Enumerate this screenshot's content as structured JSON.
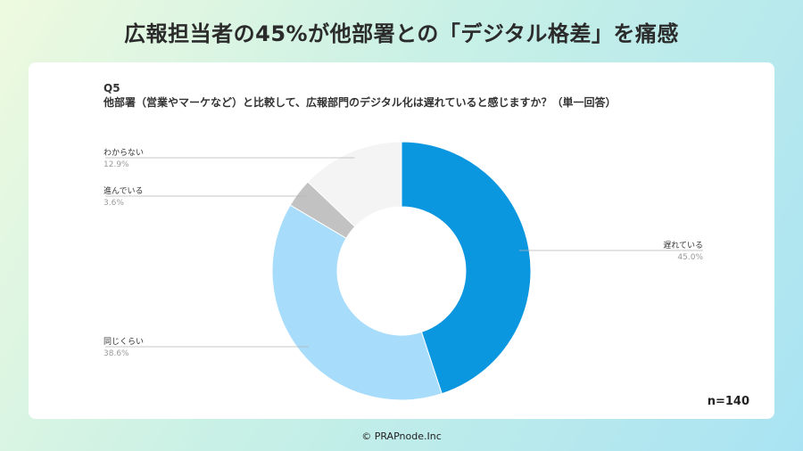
{
  "headline": "広報担当者の45%が他部署との「デジタル格差」を痛感",
  "question": {
    "number": "Q5",
    "text": "他部署（営業やマーケなど）と比較して、広報部門のデジタル化は遅れていると感じますか？（単一回答）"
  },
  "sample_size": "n=140",
  "copyright": "© PRAPnode.Inc",
  "chart_data": {
    "type": "pie",
    "donut": true,
    "slices": [
      {
        "label": "遅れている",
        "value": 45.0,
        "pct_label": "45.0%",
        "color": "#0b96e0"
      },
      {
        "label": "同じくらい",
        "value": 38.6,
        "pct_label": "38.6%",
        "color": "#a7dcfb"
      },
      {
        "label": "進んでいる",
        "value": 3.6,
        "pct_label": "3.6%",
        "color": "#c2c2c2"
      },
      {
        "label": "わからない",
        "value": 12.9,
        "pct_label": "12.9%",
        "color": "#f4f4f4"
      }
    ],
    "start": "12 o'clock",
    "direction": "clockwise"
  }
}
